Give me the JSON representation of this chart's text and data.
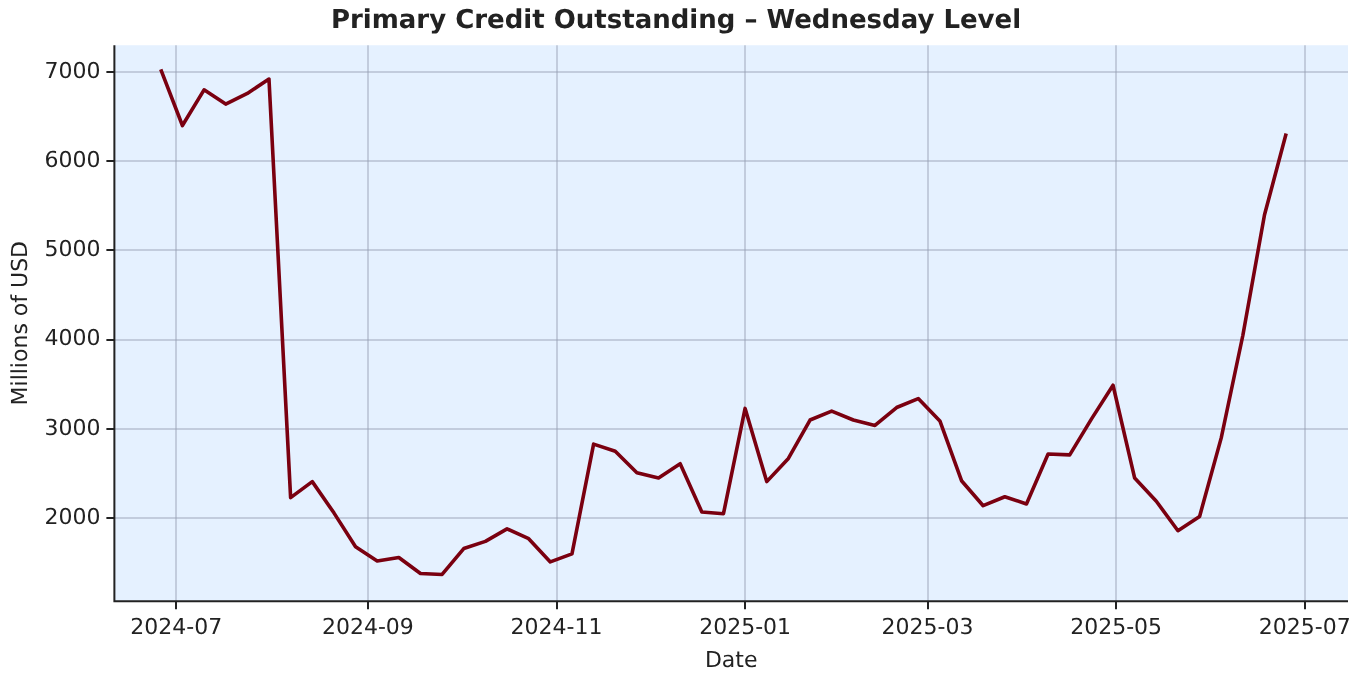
{
  "chart_data": {
    "type": "line",
    "title": "Primary Credit Outstanding – Wednesday Level",
    "xlabel": "Date",
    "ylabel": "Millions of USD",
    "x": [
      "2024-06-26",
      "2024-07-03",
      "2024-07-10",
      "2024-07-17",
      "2024-07-24",
      "2024-07-31",
      "2024-08-07",
      "2024-08-14",
      "2024-08-21",
      "2024-08-28",
      "2024-09-04",
      "2024-09-11",
      "2024-09-18",
      "2024-09-25",
      "2024-10-02",
      "2024-10-09",
      "2024-10-16",
      "2024-10-23",
      "2024-10-30",
      "2024-11-06",
      "2024-11-13",
      "2024-11-20",
      "2024-11-27",
      "2024-12-04",
      "2024-12-11",
      "2024-12-18",
      "2024-12-25",
      "2025-01-01",
      "2025-01-08",
      "2025-01-15",
      "2025-01-22",
      "2025-01-29",
      "2025-02-05",
      "2025-02-12",
      "2025-02-19",
      "2025-02-26",
      "2025-03-05",
      "2025-03-12",
      "2025-03-19",
      "2025-03-26",
      "2025-04-02",
      "2025-04-09",
      "2025-04-16",
      "2025-04-23",
      "2025-04-30",
      "2025-05-07",
      "2025-05-14",
      "2025-05-21",
      "2025-05-28",
      "2025-06-04",
      "2025-06-11",
      "2025-06-18",
      "2025-06-25"
    ],
    "series": [
      {
        "color": "#7a0010",
        "values": [
          7030,
          6400,
          6800,
          6640,
          6760,
          6920,
          2230,
          2410,
          2060,
          1680,
          1520,
          1560,
          1380,
          1370,
          1660,
          1740,
          1880,
          1770,
          1510,
          1600,
          2830,
          2750,
          2510,
          2450,
          2610,
          2070,
          2050,
          3230,
          2410,
          2670,
          3100,
          3200,
          3100,
          3040,
          3240,
          3340,
          3090,
          2420,
          2140,
          2240,
          2160,
          2720,
          2710,
          3110,
          3490,
          2450,
          2190,
          1860,
          2020,
          2900,
          4050,
          5400,
          6310
        ]
      }
    ],
    "xlim": [
      "2024-06-11",
      "2025-07-15"
    ],
    "xticks": [
      {
        "value": "2024-07-01",
        "label": "2024-07"
      },
      {
        "value": "2024-09-01",
        "label": "2024-09"
      },
      {
        "value": "2024-11-01",
        "label": "2024-11"
      },
      {
        "value": "2025-01-01",
        "label": "2025-01"
      },
      {
        "value": "2025-03-01",
        "label": "2025-03"
      },
      {
        "value": "2025-05-01",
        "label": "2025-05"
      },
      {
        "value": "2025-07-01",
        "label": "2025-07"
      }
    ],
    "ylim": [
      1070,
      7300
    ],
    "yticks": [
      2000,
      3000,
      4000,
      5000,
      6000,
      7000
    ],
    "grid": true,
    "legend": false,
    "marker": "none",
    "line_style": "solid"
  }
}
